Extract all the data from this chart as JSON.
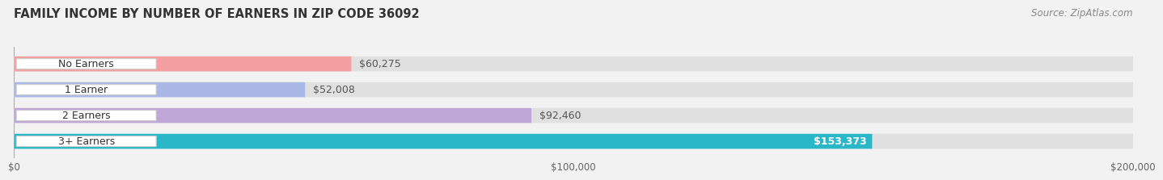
{
  "title": "FAMILY INCOME BY NUMBER OF EARNERS IN ZIP CODE 36092",
  "source": "Source: ZipAtlas.com",
  "categories": [
    "No Earners",
    "1 Earner",
    "2 Earners",
    "3+ Earners"
  ],
  "values": [
    60275,
    52008,
    92460,
    153373
  ],
  "bar_colors": [
    "#f4a0a0",
    "#aab8e8",
    "#bfa8d8",
    "#2ab8c8"
  ],
  "label_colors": [
    "#555555",
    "#555555",
    "#555555",
    "#ffffff"
  ],
  "bar_label_texts": [
    "$60,275",
    "$52,008",
    "$92,460",
    "$153,373"
  ],
  "x_max": 200000,
  "x_tick_labels": [
    "$0",
    "$100,000",
    "$200,000"
  ],
  "background_color": "#f2f2f2",
  "bar_bg_color": "#e0e0e0",
  "title_fontsize": 10.5,
  "source_fontsize": 8.5,
  "label_fontsize": 9,
  "tick_fontsize": 8.5
}
